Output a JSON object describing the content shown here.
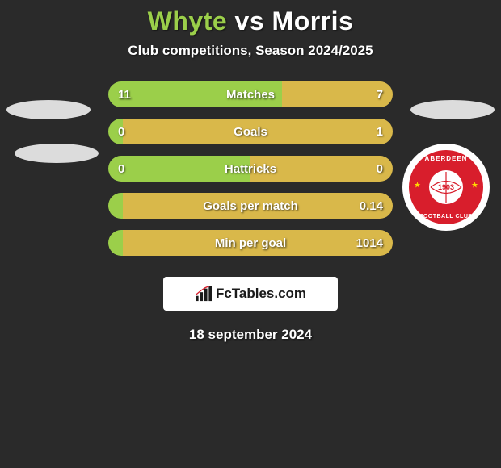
{
  "title": {
    "player1": "Whyte",
    "vs": "vs",
    "player2": "Morris"
  },
  "subtitle": "Club competitions, Season 2024/2025",
  "colors": {
    "bar_left": "#9bcf4a",
    "bar_right": "#d9b84a",
    "background": "#2a2a2a",
    "badge_red": "#d81e2c",
    "badge_white": "#ffffff"
  },
  "stats": [
    {
      "label": "Matches",
      "left_val": "11",
      "right_val": "7",
      "left_pct": 61,
      "right_pct": 39
    },
    {
      "label": "Goals",
      "left_val": "0",
      "right_val": "1",
      "left_pct": 5,
      "right_pct": 95
    },
    {
      "label": "Hattricks",
      "left_val": "0",
      "right_val": "0",
      "left_pct": 50,
      "right_pct": 50
    },
    {
      "label": "Goals per match",
      "left_val": "",
      "right_val": "0.14",
      "left_pct": 5,
      "right_pct": 95
    },
    {
      "label": "Min per goal",
      "left_val": "",
      "right_val": "1014",
      "left_pct": 5,
      "right_pct": 95
    }
  ],
  "brand": {
    "text": "FcTables.com"
  },
  "badge": {
    "top_text": "ABERDEEN",
    "bottom_text": "FOOTBALL CLUB",
    "year": "1903"
  },
  "date": "18 september 2024"
}
